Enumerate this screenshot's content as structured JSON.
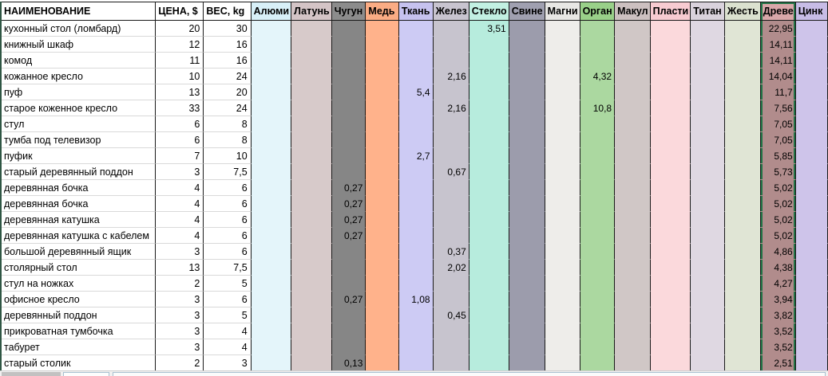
{
  "sheet": {
    "header": {
      "name": "НАИМЕНОВАНИЕ",
      "price": "ЦЕНА, $",
      "weight": "ВЕС, kg"
    },
    "selection": {
      "column": "dreve",
      "border_color": "#217346"
    },
    "materials": [
      {
        "key": "alum",
        "label": "Алюми",
        "header_color": "#d8f0f8",
        "body_color": "#e4f5fa"
      },
      {
        "key": "latun",
        "label": "Латунь",
        "header_color": "#d4c4c6",
        "body_color": "#d7caca"
      },
      {
        "key": "chugun",
        "label": "Чугун",
        "header_color": "#8c8c8c",
        "body_color": "#868686"
      },
      {
        "key": "med",
        "label": "Медь",
        "header_color": "#faac84",
        "body_color": "#ffb28b"
      },
      {
        "key": "tkan",
        "label": "Ткань",
        "header_color": "#c6c2ef",
        "body_color": "#cdcbf4"
      },
      {
        "key": "zhelez",
        "label": "Желез",
        "header_color": "#c8c4cf",
        "body_color": "#c7c4ce"
      },
      {
        "key": "steklo",
        "label": "Стекло",
        "header_color": "#c2f0e2",
        "body_color": "#b7ecdd"
      },
      {
        "key": "svinec",
        "label": "Свине",
        "header_color": "#a0a0b0",
        "body_color": "#9c9cac"
      },
      {
        "key": "magni",
        "label": "Магни",
        "header_color": "#e8e7e4",
        "body_color": "#eeedea"
      },
      {
        "key": "organ",
        "label": "Орган",
        "header_color": "#99d089",
        "body_color": "#abd8a0"
      },
      {
        "key": "makul",
        "label": "Макул",
        "header_color": "#ccc0c0",
        "body_color": "#d0c7c6"
      },
      {
        "key": "plasti",
        "label": "Пласти",
        "header_color": "#f7cbd1",
        "body_color": "#fbd9dc"
      },
      {
        "key": "titan",
        "label": "Титан",
        "header_color": "#d9d2dc",
        "body_color": "#dfd8e2"
      },
      {
        "key": "zhest",
        "label": "Жесть",
        "header_color": "#dbe1cf",
        "body_color": "#e0e5d5"
      },
      {
        "key": "dreve",
        "label": "Древе",
        "header_color": "#d9a7a9",
        "body_color": "#b18c8c"
      },
      {
        "key": "cink",
        "label": "Цинк",
        "header_color": "#c7bce6",
        "body_color": "#cec4ea"
      }
    ],
    "rows": [
      {
        "name": "кухонный стол (ломбард)",
        "price": "20",
        "weight": "30",
        "values": {
          "steklo": "3,51",
          "dreve": "22,95"
        }
      },
      {
        "name": "книжный шкаф",
        "price": "12",
        "weight": "16",
        "values": {
          "dreve": "14,11"
        }
      },
      {
        "name": "комод",
        "price": "11",
        "weight": "16",
        "values": {
          "dreve": "14,11"
        }
      },
      {
        "name": "кожанное кресло",
        "price": "10",
        "weight": "24",
        "values": {
          "zhelez": "2,16",
          "organ": "4,32",
          "dreve": "14,04"
        }
      },
      {
        "name": "пуф",
        "price": "13",
        "weight": "20",
        "values": {
          "tkan": "5,4",
          "dreve": "11,7"
        }
      },
      {
        "name": "старое коженное кресло",
        "price": "33",
        "weight": "24",
        "values": {
          "zhelez": "2,16",
          "organ": "10,8",
          "dreve": "7,56"
        }
      },
      {
        "name": "стул",
        "price": "6",
        "weight": "8",
        "values": {
          "dreve": "7,05"
        }
      },
      {
        "name": "тумба под телевизор",
        "price": "6",
        "weight": "8",
        "values": {
          "dreve": "7,05"
        }
      },
      {
        "name": "пуфик",
        "price": "7",
        "weight": "10",
        "values": {
          "tkan": "2,7",
          "dreve": "5,85"
        }
      },
      {
        "name": "старый деревянный поддон",
        "price": "3",
        "weight": "7,5",
        "values": {
          "zhelez": "0,67",
          "dreve": "5,73"
        }
      },
      {
        "name": "деревянная бочка",
        "price": "4",
        "weight": "6",
        "values": {
          "chugun": "0,27",
          "dreve": "5,02"
        }
      },
      {
        "name": "деревянная бочка",
        "price": "4",
        "weight": "6",
        "values": {
          "chugun": "0,27",
          "dreve": "5,02"
        }
      },
      {
        "name": "деревянная катушка",
        "price": "4",
        "weight": "6",
        "values": {
          "chugun": "0,27",
          "dreve": "5,02"
        }
      },
      {
        "name": "деревянная катушка с кабелем",
        "price": "4",
        "weight": "6",
        "values": {
          "chugun": "0,27",
          "dreve": "5,02"
        }
      },
      {
        "name": "большой деревянный ящик",
        "price": "3",
        "weight": "6",
        "values": {
          "zhelez": "0,37",
          "dreve": "4,86"
        }
      },
      {
        "name": "столярный стол",
        "price": "13",
        "weight": "7,5",
        "values": {
          "zhelez": "2,02",
          "dreve": "4,38"
        }
      },
      {
        "name": "стул на ножках",
        "price": "2",
        "weight": "5",
        "values": {
          "dreve": "4,27"
        }
      },
      {
        "name": "офисное кресло",
        "price": "3",
        "weight": "6",
        "values": {
          "chugun": "0,27",
          "tkan": "1,08",
          "dreve": "3,94"
        }
      },
      {
        "name": "деревянный поддон",
        "price": "3",
        "weight": "5",
        "values": {
          "zhelez": "0,45",
          "dreve": "3,82"
        }
      },
      {
        "name": "прикроватная тумбочка",
        "price": "3",
        "weight": "4",
        "values": {
          "dreve": "3,52"
        }
      },
      {
        "name": "табурет",
        "price": "3",
        "weight": "4",
        "values": {
          "dreve": "3,52"
        }
      },
      {
        "name": "старый столик",
        "price": "2",
        "weight": "3",
        "values": {
          "chugun": "0,13",
          "dreve": "2,51"
        }
      }
    ]
  }
}
